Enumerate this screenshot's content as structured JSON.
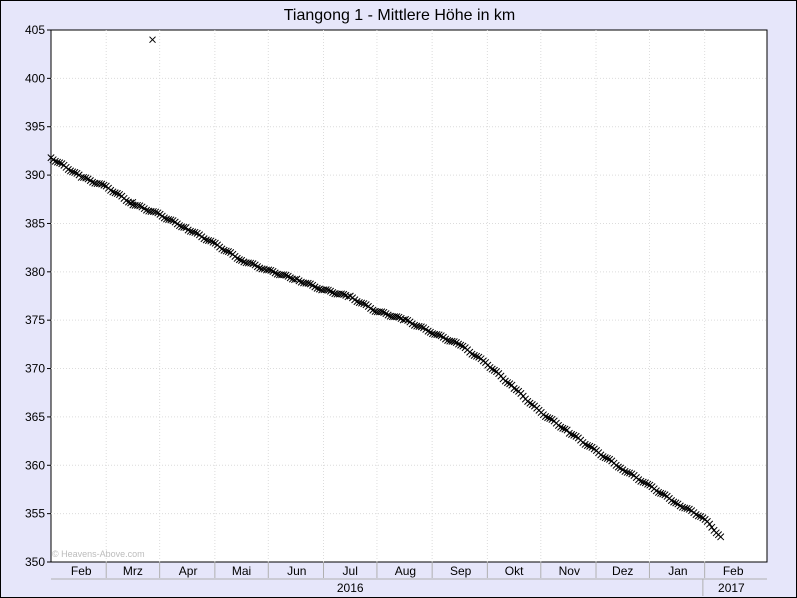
{
  "chart_data": {
    "type": "scatter",
    "title": "Tiangong 1 - Mittlere Höhe in km",
    "xlabel": "",
    "ylabel": "",
    "ylim": [
      350,
      405
    ],
    "yticks": [
      350,
      355,
      360,
      365,
      370,
      375,
      380,
      385,
      390,
      395,
      400,
      405
    ],
    "xlim": [
      "2016-01-15",
      "2017-02-20"
    ],
    "month_ticks": [
      {
        "label": "Feb",
        "date": "2016-02-01"
      },
      {
        "label": "Mrz",
        "date": "2016-03-01"
      },
      {
        "label": "Apr",
        "date": "2016-04-01"
      },
      {
        "label": "Mai",
        "date": "2016-05-01"
      },
      {
        "label": "Jun",
        "date": "2016-06-01"
      },
      {
        "label": "Jul",
        "date": "2016-07-01"
      },
      {
        "label": "Aug",
        "date": "2016-08-01"
      },
      {
        "label": "Sep",
        "date": "2016-09-01"
      },
      {
        "label": "Okt",
        "date": "2016-10-01"
      },
      {
        "label": "Nov",
        "date": "2016-11-01"
      },
      {
        "label": "Dez",
        "date": "2016-12-01"
      },
      {
        "label": "Jan",
        "date": "2017-01-01"
      },
      {
        "label": "Feb",
        "date": "2017-02-01"
      }
    ],
    "year_labels": [
      {
        "label": "2016",
        "date": "2016-07-01"
      },
      {
        "label": "2017",
        "date": "2017-01-31"
      }
    ],
    "year_boundary": "2017-01-15",
    "grid": true,
    "marker": "x",
    "series": [
      {
        "points": [
          {
            "x": "2016-01-15",
            "y": 391.8
          },
          {
            "x": "2016-02-01",
            "y": 389.8
          },
          {
            "x": "2016-02-15",
            "y": 388.8
          },
          {
            "x": "2016-03-01",
            "y": 387.0
          },
          {
            "x": "2016-03-15",
            "y": 386.0
          },
          {
            "x": "2016-04-01",
            "y": 384.4
          },
          {
            "x": "2016-04-15",
            "y": 383.0
          },
          {
            "x": "2016-05-01",
            "y": 381.2
          },
          {
            "x": "2016-05-15",
            "y": 380.2
          },
          {
            "x": "2016-06-01",
            "y": 379.2
          },
          {
            "x": "2016-06-15",
            "y": 378.2
          },
          {
            "x": "2016-07-01",
            "y": 377.4
          },
          {
            "x": "2016-07-15",
            "y": 376.0
          },
          {
            "x": "2016-08-01",
            "y": 375.0
          },
          {
            "x": "2016-08-15",
            "y": 373.8
          },
          {
            "x": "2016-09-01",
            "y": 372.4
          },
          {
            "x": "2016-09-15",
            "y": 370.6
          },
          {
            "x": "2016-10-01",
            "y": 368.0
          },
          {
            "x": "2016-10-15",
            "y": 365.6
          },
          {
            "x": "2016-11-01",
            "y": 363.4
          },
          {
            "x": "2016-11-15",
            "y": 361.6
          },
          {
            "x": "2016-12-01",
            "y": 359.6
          },
          {
            "x": "2016-12-15",
            "y": 358.0
          },
          {
            "x": "2017-01-01",
            "y": 356.0
          },
          {
            "x": "2017-01-15",
            "y": 354.6
          },
          {
            "x": "2017-01-25",
            "y": 352.6
          }
        ]
      }
    ],
    "outliers": [
      {
        "x": "2016-03-12",
        "y": 404.0
      },
      {
        "x": "2016-03-01",
        "y": 387.2
      }
    ],
    "watermark": "© Heavens-Above.com"
  }
}
